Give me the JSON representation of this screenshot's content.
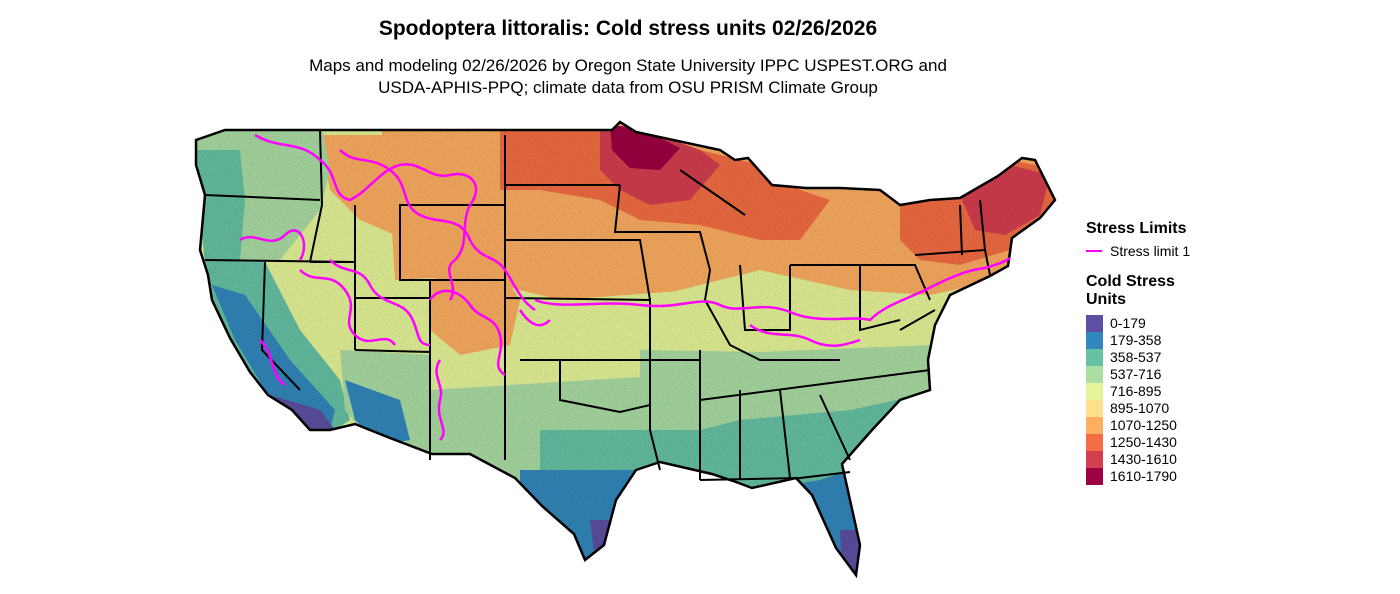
{
  "title": "Spodoptera littoralis: Cold stress units 02/26/2026",
  "subtitle": {
    "line1": "Maps and modeling 02/26/2026 by Oregon State University IPPC USPEST.ORG and",
    "line2": "USDA-APHIS-PPQ; climate data from OSU PRISM Climate Group"
  },
  "legend": {
    "stress_title": "Stress Limits",
    "stress_items": [
      {
        "label": "Stress limit 1",
        "color": "#ff00ff"
      }
    ],
    "cold_title": "Cold Stress Units",
    "bins": [
      {
        "label": "0-179",
        "color": "#5e4fa2"
      },
      {
        "label": "179-358",
        "color": "#3288bd"
      },
      {
        "label": "358-537",
        "color": "#66c2a5"
      },
      {
        "label": "537-716",
        "color": "#abdda4"
      },
      {
        "label": "716-895",
        "color": "#e6f598"
      },
      {
        "label": "895-1070",
        "color": "#fee08b"
      },
      {
        "label": "1070-1250",
        "color": "#fdae61"
      },
      {
        "label": "1250-1430",
        "color": "#f46d43"
      },
      {
        "label": "1430-1610",
        "color": "#d53e4f"
      },
      {
        "label": "1610-1790",
        "color": "#9e0142"
      }
    ]
  }
}
